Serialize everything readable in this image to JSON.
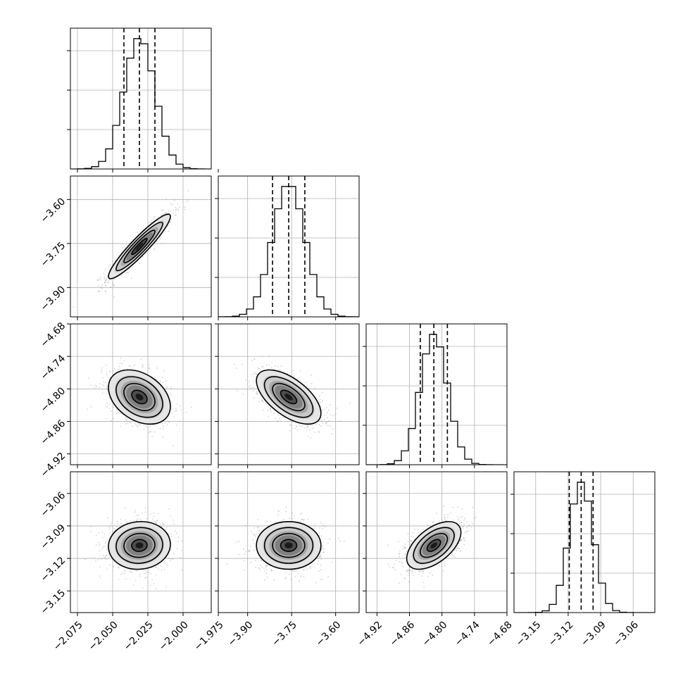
{
  "chart_data": {
    "type": "corner",
    "parameters": [
      {
        "mean": -2.031,
        "std": 0.011,
        "q16": -2.042,
        "q50": -2.031,
        "q84": -2.02,
        "range": [
          -2.08,
          -1.98
        ]
      },
      {
        "mean": -3.76,
        "std": 0.055,
        "q16": -3.815,
        "q50": -3.76,
        "q84": -3.705,
        "range": [
          -4.0,
          -3.52
        ]
      },
      {
        "mean": -4.815,
        "std": 0.025,
        "q16": -4.84,
        "q50": -4.815,
        "q84": -4.79,
        "range": [
          -4.94,
          -4.68
        ]
      },
      {
        "mean": -3.108,
        "std": 0.011,
        "q16": -3.119,
        "q50": -3.108,
        "q84": -3.097,
        "range": [
          -3.17,
          -3.04
        ]
      }
    ],
    "correlations": [
      {
        "i": 1,
        "j": 0,
        "rho": 0.93
      },
      {
        "i": 2,
        "j": 0,
        "rho": -0.35
      },
      {
        "i": 2,
        "j": 1,
        "rho": -0.6
      },
      {
        "i": 3,
        "j": 0,
        "rho": 0.05
      },
      {
        "i": 3,
        "j": 1,
        "rho": 0.0
      },
      {
        "i": 3,
        "j": 2,
        "rho": 0.55
      }
    ],
    "x_ticks": [
      [
        "−2.075",
        "−2.050",
        "−2.025",
        "−2.000",
        "−1.975"
      ],
      [
        "−3.90",
        "−3.75",
        "−3.60"
      ],
      [
        "−4.92",
        "−4.86",
        "−4.80",
        "−4.74",
        "−4.68"
      ],
      [
        "−3.15",
        "−3.12",
        "−3.09",
        "−3.06"
      ]
    ],
    "y_ticks": [
      [],
      [
        "−3.60",
        "−3.75",
        "−3.90"
      ],
      [
        "−4.68",
        "−4.74",
        "−4.80",
        "−4.86",
        "−4.92"
      ],
      [
        "−3.06",
        "−3.09",
        "−3.12",
        "−3.15"
      ]
    ],
    "x_tick_values": [
      [
        -2.075,
        -2.05,
        -2.025,
        -2.0,
        -1.975
      ],
      [
        -3.9,
        -3.75,
        -3.6
      ],
      [
        -4.92,
        -4.86,
        -4.8,
        -4.74,
        -4.68
      ],
      [
        -3.15,
        -3.12,
        -3.09,
        -3.06
      ]
    ],
    "y_tick_values": [
      [],
      [
        -3.6,
        -3.75,
        -3.9
      ],
      [
        -4.68,
        -4.74,
        -4.8,
        -4.86,
        -4.92
      ],
      [
        -3.06,
        -3.09,
        -3.12,
        -3.15
      ]
    ],
    "hist_bins": 20,
    "quantile_lines": [
      "0.16",
      "0.50",
      "0.84"
    ],
    "grid": true,
    "colors": {
      "points": "#808080",
      "density": "#000000",
      "lines": "#000000"
    }
  }
}
